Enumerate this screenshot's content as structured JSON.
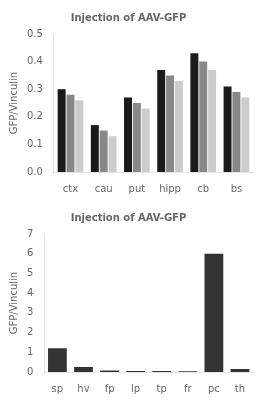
{
  "chart_data": [
    {
      "type": "bar",
      "title": "Injection of AAV-GFP",
      "categories": [
        "ctx",
        "cau",
        "put",
        "hipp",
        "cb",
        "bs"
      ],
      "series": [
        {
          "color": "#1a1a1a",
          "values": [
            0.3,
            0.17,
            0.27,
            0.37,
            0.43,
            0.31
          ]
        },
        {
          "color": "#888888",
          "values": [
            0.28,
            0.15,
            0.25,
            0.35,
            0.4,
            0.29
          ]
        },
        {
          "color": "#cccccc",
          "values": [
            0.26,
            0.13,
            0.23,
            0.33,
            0.37,
            0.27
          ]
        }
      ],
      "ylabel": "GFP/Vinculin",
      "ylim": [
        0,
        0.5
      ],
      "yticks": [
        {
          "value": 0,
          "label": "0.0"
        },
        0.1,
        0.2,
        0.3,
        0.4,
        0.5
      ],
      "grid": false
    },
    {
      "type": "bar",
      "title": "Injection of AAV-GFP",
      "categories": [
        "sp",
        "hv",
        "fp",
        "lp",
        "tp",
        "fr",
        "pc",
        "th"
      ],
      "values": [
        1.2,
        0.25,
        0.08,
        0.05,
        0.05,
        0.04,
        6.0,
        0.15
      ],
      "color": "#333333",
      "ylabel": "GFP/Vinculin",
      "ylim": [
        0,
        7
      ],
      "yticks": [
        0,
        1,
        2,
        3,
        4,
        5,
        6,
        7
      ],
      "grid": false
    }
  ]
}
